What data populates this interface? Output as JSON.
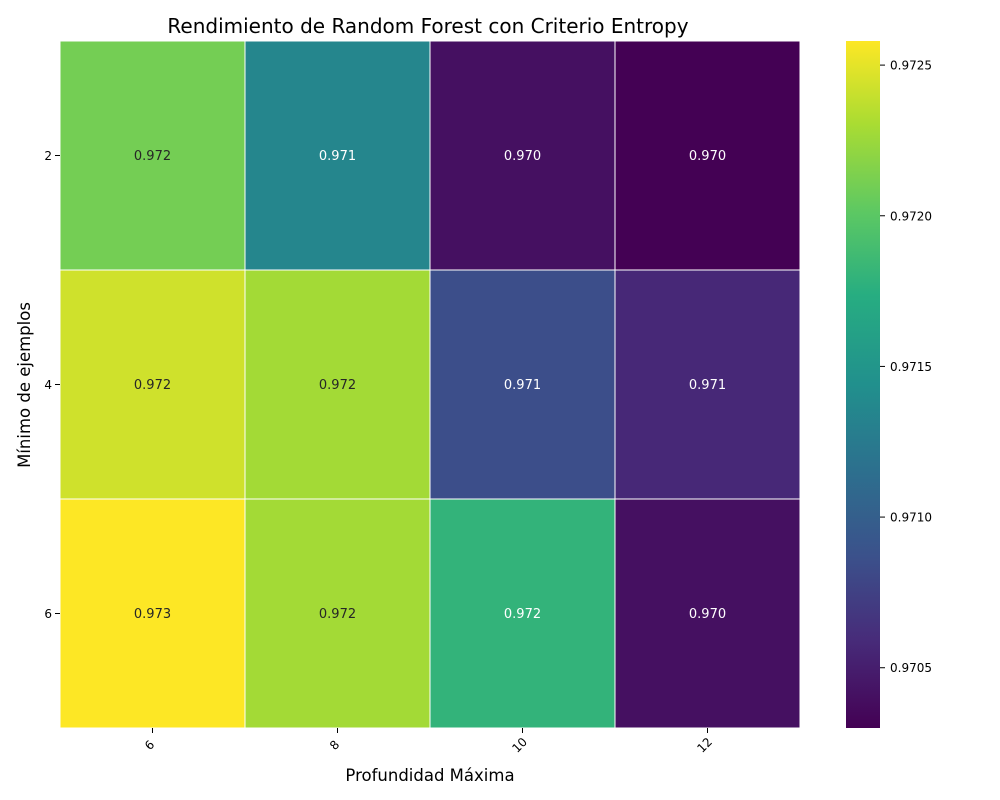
{
  "chart_data": {
    "type": "heatmap",
    "title": "Rendimiento de Random Forest con Criterio Entropy",
    "xlabel": "Profundidad Máxima",
    "ylabel": "Mínimo de ejemplos",
    "x_categories": [
      "6",
      "8",
      "10",
      "12"
    ],
    "y_categories": [
      "2",
      "4",
      "6"
    ],
    "values": [
      [
        0.9721,
        0.97135,
        0.9704,
        0.9703
      ],
      [
        0.97243,
        0.97228,
        0.97085,
        0.97057
      ],
      [
        0.97258,
        0.97228,
        0.9718,
        0.9704
      ]
    ],
    "cell_labels": [
      [
        "0.972",
        "0.971",
        "0.970",
        "0.970"
      ],
      [
        "0.972",
        "0.972",
        "0.971",
        "0.971"
      ],
      [
        "0.973",
        "0.972",
        "0.972",
        "0.970"
      ]
    ],
    "colormap": "viridis",
    "vmin": 0.9703,
    "vmax": 0.97258,
    "colorbar_ticks": [
      {
        "value": 0.9705,
        "label": "0.9705"
      },
      {
        "value": 0.971,
        "label": "0.9710"
      },
      {
        "value": 0.9715,
        "label": "0.9715"
      },
      {
        "value": 0.972,
        "label": "0.9720"
      },
      {
        "value": 0.9725,
        "label": "0.9725"
      }
    ],
    "x_tick_rotation": 45,
    "cell_border_color": "#ffffff"
  }
}
